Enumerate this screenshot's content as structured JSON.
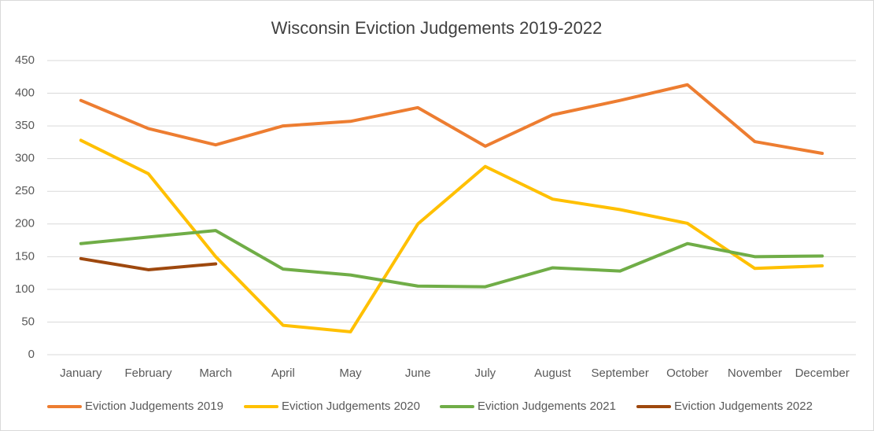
{
  "chart_data": {
    "type": "line",
    "title": "Wisconsin Eviction Judgements 2019-2022",
    "categories": [
      "January",
      "February",
      "March",
      "April",
      "May",
      "June",
      "July",
      "August",
      "September",
      "October",
      "November",
      "December"
    ],
    "series": [
      {
        "name": "Eviction Judgements 2019",
        "color": "#ED7D31",
        "values": [
          389,
          346,
          321,
          350,
          357,
          378,
          319,
          367,
          389,
          413,
          326,
          308
        ]
      },
      {
        "name": "Eviction Judgements 2020",
        "color": "#FFC000",
        "values": [
          328,
          277,
          150,
          45,
          35,
          200,
          288,
          238,
          222,
          201,
          132,
          136
        ]
      },
      {
        "name": "Eviction Judgements 2021",
        "color": "#70AD47",
        "values": [
          170,
          180,
          190,
          131,
          122,
          105,
          104,
          133,
          128,
          170,
          150,
          151
        ]
      },
      {
        "name": "Eviction Judgements 2022",
        "color": "#9E480E",
        "values": [
          147,
          130,
          139,
          null,
          null,
          null,
          null,
          null,
          null,
          null,
          null,
          null
        ]
      }
    ],
    "ylim": [
      0,
      450
    ],
    "yticks": [
      0,
      50,
      100,
      150,
      200,
      250,
      300,
      350,
      400,
      450
    ],
    "grid": true,
    "legend": "bottom"
  }
}
